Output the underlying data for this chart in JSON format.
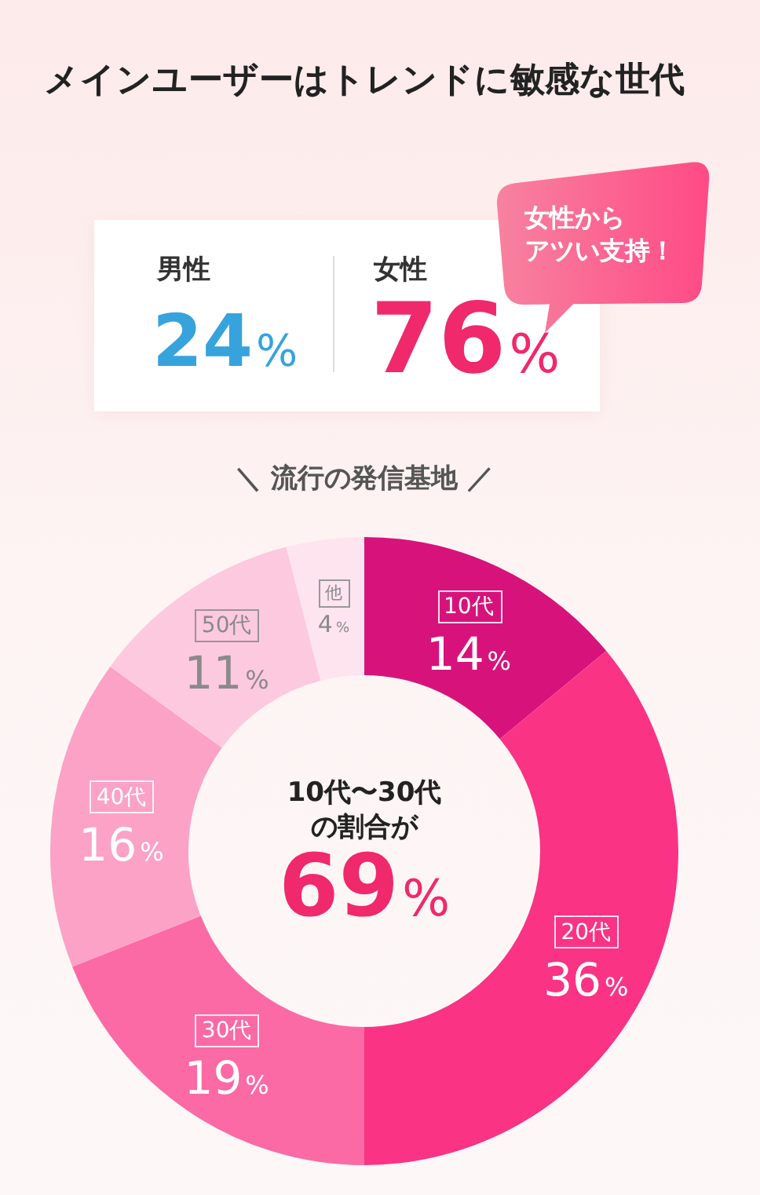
{
  "chart_data": [
    {
      "type": "other",
      "title": "メインユーザーはトレンドに敏感な世代",
      "annotations": [
        "男性",
        "24%",
        "女性",
        "76%",
        "女性からアツい支持！"
      ]
    },
    {
      "type": "donut",
      "title": "＼ 流行の発信基地 ／",
      "categories": [
        "10代",
        "20代",
        "30代",
        "40代",
        "50代",
        "他"
      ],
      "values": [
        14,
        36,
        19,
        16,
        11,
        4
      ],
      "value_labels": [
        "14%",
        "36%",
        "19%",
        "16%",
        "11%",
        "4%"
      ],
      "colors": [
        "#d7137b",
        "#fa3385",
        "#fb6aa5",
        "#fca2c6",
        "#fdc9de",
        "#fde4ef"
      ],
      "annotations": [
        "10代〜30代の割合が",
        "69%"
      ]
    }
  ]
}
